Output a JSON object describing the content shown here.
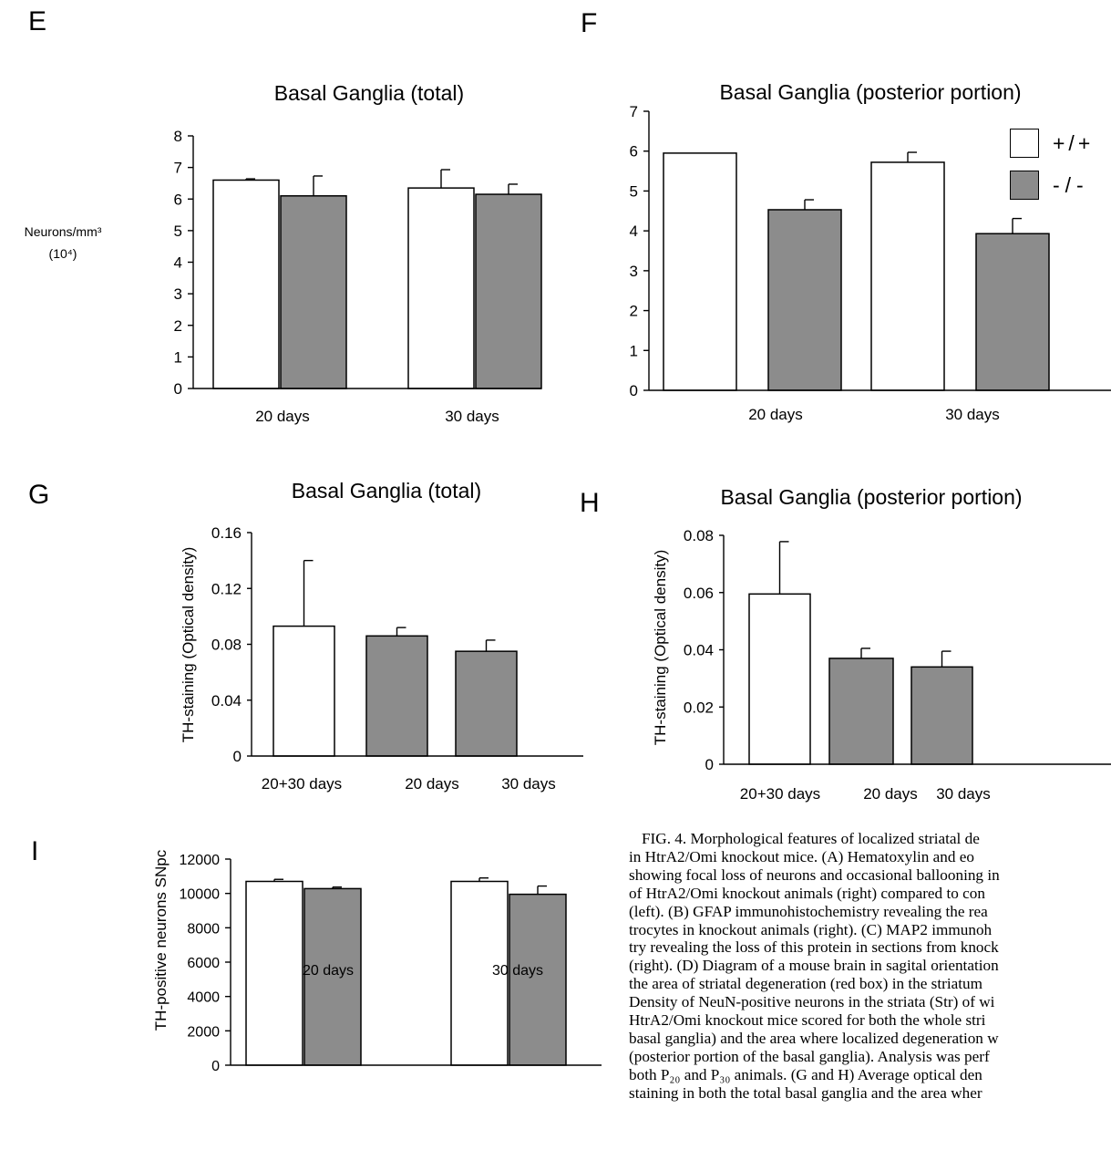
{
  "panels": {
    "E": {
      "letter": "E",
      "ylabel_line1": "Neurons/mm³",
      "ylabel_line2": "(10⁴)"
    },
    "F": {
      "letter": "F"
    },
    "G": {
      "letter": "G"
    },
    "H": {
      "letter": "H"
    },
    "I": {
      "letter": "I"
    }
  },
  "legend": {
    "items": [
      {
        "label": "+/+",
        "color": "#ffffff"
      },
      {
        "label": "-/-",
        "color": "#8c8c8c"
      }
    ]
  },
  "caption": {
    "lines": [
      "FIG. 4. Morphological features of localized striatal de",
      "in HtrA2/Omi knockout mice. (A) Hematoxylin and eo",
      "showing focal loss of neurons and occasional ballooning in",
      "of HtrA2/Omi knockout animals (right) compared to con",
      "(left). (B) GFAP immunohistochemistry revealing the rea",
      "trocytes in knockout animals (right). (C) MAP2 immunoh",
      "try revealing the loss of this protein in sections from knock",
      "(right). (D) Diagram of a mouse brain in sagital orientation",
      "the area of striatal degeneration (red box) in the striatum",
      "Density of NeuN-positive neurons in the striata (Str) of wi",
      "HtrA2/Omi knockout mice scored for both the whole stri",
      "basal ganglia) and the area where localized degeneration w",
      "(posterior portion of the basal ganglia). Analysis was perf",
      "both P₂₀ and P₃₀ animals. (G and H) Average optical den",
      "staining in both the total basal ganglia and the area wher"
    ]
  },
  "colors": {
    "wildtype": "#ffffff",
    "knockout": "#8c8c8c"
  },
  "chart_data": [
    {
      "id": "E",
      "type": "bar",
      "title": "Basal Ganglia (total)",
      "xlabel": "",
      "ylabel": "Neurons/mm³ (10⁴)",
      "categories": [
        "20 days",
        "30 days"
      ],
      "ylim": [
        0,
        8
      ],
      "yticks": [
        0,
        1,
        2,
        3,
        4,
        5,
        6,
        7,
        8
      ],
      "series": [
        {
          "name": "+/+",
          "values": [
            6.6,
            6.35
          ],
          "errors": [
            0.04,
            0.58
          ]
        },
        {
          "name": "-/-",
          "values": [
            6.1,
            6.15
          ],
          "errors": [
            0.63,
            0.32
          ]
        }
      ],
      "grid": false
    },
    {
      "id": "F",
      "type": "bar",
      "title": "Basal Ganglia (posterior portion)",
      "xlabel": "",
      "ylabel": "",
      "categories": [
        "20 days",
        "30 days"
      ],
      "ylim": [
        0,
        7
      ],
      "yticks": [
        0,
        1,
        2,
        3,
        4,
        5,
        6,
        7
      ],
      "series": [
        {
          "name": "+/+",
          "values": [
            5.95,
            5.72
          ],
          "errors": [
            0,
            0.25
          ]
        },
        {
          "name": "-/-",
          "values": [
            4.53,
            3.93
          ],
          "errors": [
            0.25,
            0.38
          ]
        }
      ],
      "legend": "top-right",
      "grid": false
    },
    {
      "id": "G",
      "type": "bar",
      "title": "Basal Ganglia (total)",
      "xlabel": "",
      "ylabel": "TH-staining (Optical density)",
      "categories": [
        "20+30 days",
        "20 days",
        "30 days"
      ],
      "ylim": [
        0,
        0.16
      ],
      "yticks": [
        "0",
        "0.04",
        "0.08",
        "0.12",
        "0.16"
      ],
      "yticks_values": [
        0,
        0.04,
        0.08,
        0.12,
        0.16
      ],
      "values": [
        0.093,
        0.086,
        0.075
      ],
      "errors": [
        0.047,
        0.006,
        0.008
      ],
      "fills": [
        "+/+",
        "-/-",
        "-/-"
      ],
      "grid": false
    },
    {
      "id": "H",
      "type": "bar",
      "title": "Basal Ganglia (posterior portion)",
      "xlabel": "",
      "ylabel": "TH-staining (Optical density)",
      "categories": [
        "20+30 days",
        "20 days",
        "30 days"
      ],
      "ylim": [
        0,
        0.08
      ],
      "yticks": [
        "0",
        "0.02",
        "0.04",
        "0.06",
        "0.08"
      ],
      "yticks_values": [
        0,
        0.02,
        0.04,
        0.06,
        0.08
      ],
      "values": [
        0.0595,
        0.037,
        0.034
      ],
      "errors": [
        0.0183,
        0.0035,
        0.0055
      ],
      "fills": [
        "+/+",
        "-/-",
        "-/-"
      ],
      "grid": false
    },
    {
      "id": "I",
      "type": "bar",
      "title": "",
      "xlabel": "",
      "ylabel": "TH-positive neurons SNpc",
      "categories": [
        "20 days",
        "30 days"
      ],
      "ylim": [
        0,
        12000
      ],
      "yticks": [
        0,
        2000,
        4000,
        6000,
        8000,
        10000,
        12000
      ],
      "series": [
        {
          "name": "+/+",
          "values": [
            10700,
            10700
          ],
          "errors": [
            120,
            200
          ]
        },
        {
          "name": "-/-",
          "values": [
            10280,
            9950
          ],
          "errors": [
            90,
            480
          ]
        }
      ],
      "grid": false
    }
  ]
}
